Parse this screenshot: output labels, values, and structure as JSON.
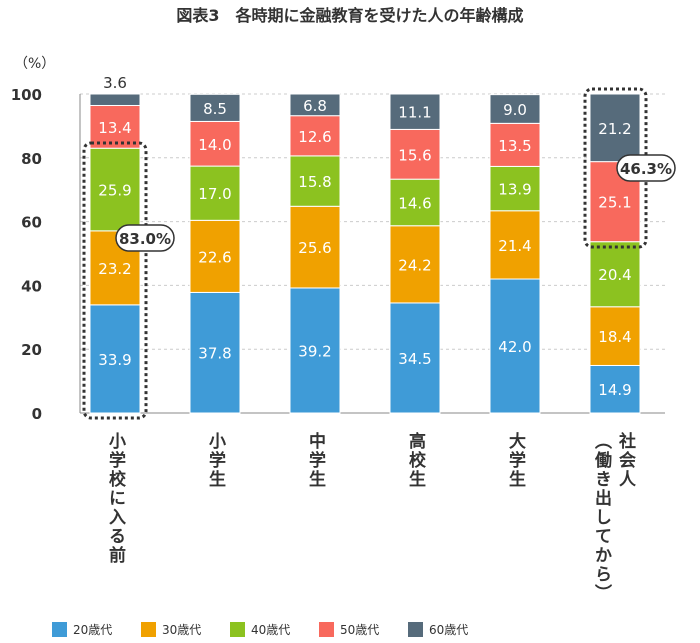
{
  "title": "図表3　各時期に金融教育を受けた人の年齢構成",
  "chart_data": {
    "type": "bar",
    "stacked": true,
    "title": "図表3　各時期に金融教育を受けた人の年齢構成",
    "ylabel": "（%）",
    "ylim": [
      0,
      100
    ],
    "yticks": [
      0,
      20,
      40,
      60,
      80,
      100
    ],
    "grid": true,
    "categories": [
      "小学校に入る前",
      "小学生",
      "中学生",
      "高校生",
      "大学生",
      "社会人\n（働き出してから）"
    ],
    "series": [
      {
        "name": "20歳代",
        "color": "#3f9bd7",
        "values": [
          33.9,
          37.8,
          39.2,
          34.5,
          42.0,
          14.9
        ]
      },
      {
        "name": "30歳代",
        "color": "#f0a100",
        "values": [
          23.2,
          22.6,
          25.6,
          24.2,
          21.4,
          18.4
        ]
      },
      {
        "name": "40歳代",
        "color": "#8cc220",
        "values": [
          25.9,
          17.0,
          15.8,
          14.6,
          13.9,
          20.4
        ]
      },
      {
        "name": "50歳代",
        "color": "#f8695d",
        "values": [
          13.4,
          14.0,
          12.6,
          15.6,
          13.5,
          25.1
        ]
      },
      {
        "name": "60歳代",
        "color": "#566b7b",
        "values": [
          3.6,
          8.5,
          6.8,
          11.1,
          9.0,
          21.2
        ]
      }
    ],
    "legend_position": "bottom",
    "annotations": [
      {
        "category": "小学校に入る前",
        "text": "83.0%"
      },
      {
        "category": "社会人\n（働き出してから）",
        "text": "46.3%"
      }
    ]
  }
}
